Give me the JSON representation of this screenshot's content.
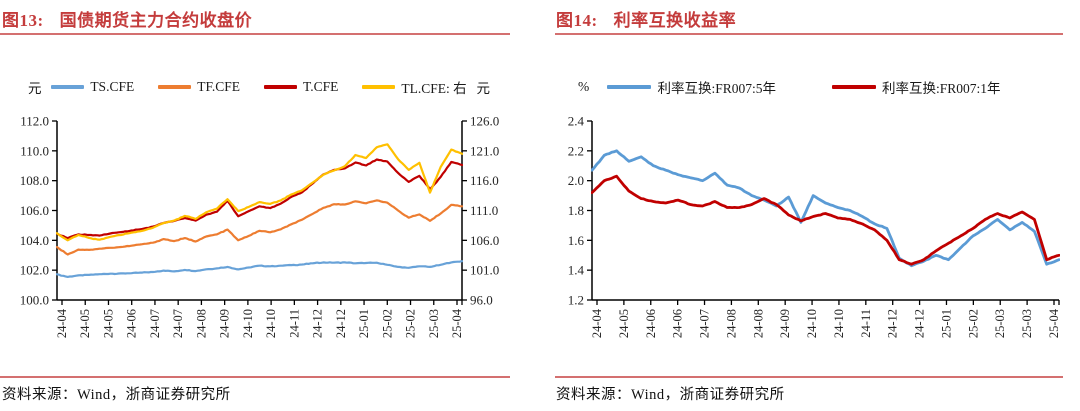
{
  "colors": {
    "title_red": "#C43C3C",
    "rule_red": "#D47070",
    "axis_black": "#000000",
    "tick_text": "#262626",
    "source_text": "#111111"
  },
  "panels": [
    {
      "fig_label": "图13:",
      "title": "国债期货主力合约收盘价",
      "unit_left": "元",
      "unit_right": "元",
      "source": "资料来源：Wind，浙商证券研究所"
    },
    {
      "fig_label": "图14:",
      "title": "利率互换收益率",
      "unit_left": "%",
      "source": "资料来源：Wind，浙商证券研究所"
    }
  ],
  "chart_data": [
    {
      "type": "line",
      "title": "国债期货主力合约收盘价",
      "legend_position": "top",
      "x_labels": [
        "24-04",
        "24-05",
        "24-05",
        "24-06",
        "24-07",
        "24-07",
        "24-08",
        "24-09",
        "24-10",
        "24-10",
        "24-11",
        "24-12",
        "24-12",
        "25-01",
        "25-02",
        "25-02",
        "25-03",
        "25-04"
      ],
      "y_axis_left": {
        "label": "元",
        "min": 100.0,
        "max": 112.0,
        "step": 2.0,
        "decimals": 1
      },
      "y_axis_right": {
        "label": "元",
        "min": 96.0,
        "max": 126.0,
        "step": 5.0,
        "decimals": 1
      },
      "series": [
        {
          "name": "TS.CFE",
          "color": "#68A2D8",
          "axis": "left",
          "values": [
            101.72,
            101.55,
            101.65,
            101.68,
            101.73,
            101.76,
            101.78,
            101.8,
            101.84,
            101.88,
            101.97,
            101.92,
            102.02,
            101.94,
            102.06,
            102.12,
            102.22,
            102.05,
            102.18,
            102.3,
            102.26,
            102.3,
            102.34,
            102.38,
            102.46,
            102.52,
            102.5,
            102.52,
            102.46,
            102.48,
            102.5,
            102.36,
            102.22,
            102.16,
            102.26,
            102.22,
            102.36,
            102.52,
            102.6
          ]
        },
        {
          "name": "TF.CFE",
          "color": "#ED7D31",
          "axis": "left",
          "values": [
            103.55,
            103.05,
            103.38,
            103.36,
            103.44,
            103.5,
            103.55,
            103.64,
            103.74,
            103.84,
            104.08,
            103.95,
            104.15,
            103.92,
            104.26,
            104.4,
            104.72,
            104.0,
            104.3,
            104.64,
            104.54,
            104.74,
            105.08,
            105.38,
            105.78,
            106.18,
            106.42,
            106.4,
            106.62,
            106.48,
            106.68,
            106.52,
            106.0,
            105.52,
            105.74,
            105.3,
            105.8,
            106.38,
            106.28
          ]
        },
        {
          "name": "T.CFE",
          "color": "#C00000",
          "axis": "left",
          "values": [
            104.45,
            104.15,
            104.4,
            104.36,
            104.32,
            104.46,
            104.55,
            104.66,
            104.76,
            104.92,
            105.16,
            105.3,
            105.5,
            105.32,
            105.72,
            105.92,
            106.65,
            105.62,
            105.96,
            106.28,
            106.16,
            106.46,
            106.92,
            107.22,
            107.82,
            108.42,
            108.72,
            108.82,
            109.22,
            109.02,
            109.42,
            109.28,
            108.52,
            107.92,
            108.32,
            107.42,
            108.25,
            109.25,
            109.05
          ]
        },
        {
          "name": "TL.CFE: 右",
          "color": "#FFC000",
          "axis": "right",
          "values": [
            107.2,
            106.0,
            106.9,
            106.4,
            106.1,
            106.6,
            106.9,
            107.3,
            107.6,
            108.1,
            108.9,
            109.3,
            110.1,
            109.6,
            110.7,
            111.3,
            112.9,
            110.9,
            111.6,
            112.4,
            112.1,
            112.7,
            113.7,
            114.4,
            115.7,
            117.0,
            117.7,
            118.4,
            120.3,
            119.8,
            121.6,
            122.1,
            119.6,
            117.8,
            119.0,
            114.0,
            118.3,
            121.2,
            120.5
          ]
        }
      ]
    },
    {
      "type": "line",
      "title": "利率互换收益率",
      "legend_position": "top",
      "x_labels": [
        "24-04",
        "24-05",
        "24-06",
        "24-06",
        "24-07",
        "24-08",
        "24-08",
        "24-09",
        "24-10",
        "24-10",
        "24-11",
        "24-12",
        "24-12",
        "25-01",
        "25-02",
        "25-03",
        "25-03",
        "25-04"
      ],
      "y_axis_left": {
        "label": "%",
        "min": 1.2,
        "max": 2.4,
        "step": 0.2,
        "decimals": 1
      },
      "series": [
        {
          "name": "利率互换:FR007:5年",
          "color": "#5B9BD5",
          "axis": "left",
          "values": [
            2.07,
            2.17,
            2.2,
            2.13,
            2.16,
            2.1,
            2.07,
            2.04,
            2.02,
            2.0,
            2.05,
            1.97,
            1.95,
            1.9,
            1.87,
            1.83,
            1.89,
            1.72,
            1.9,
            1.85,
            1.82,
            1.8,
            1.76,
            1.71,
            1.68,
            1.48,
            1.43,
            1.46,
            1.5,
            1.47,
            1.55,
            1.63,
            1.68,
            1.74,
            1.67,
            1.72,
            1.66,
            1.44,
            1.47
          ]
        },
        {
          "name": "利率互换:FR007:1年",
          "color": "#C00000",
          "axis": "left",
          "values": [
            1.92,
            2.0,
            2.03,
            1.93,
            1.88,
            1.86,
            1.85,
            1.87,
            1.84,
            1.83,
            1.86,
            1.82,
            1.82,
            1.84,
            1.88,
            1.84,
            1.77,
            1.73,
            1.76,
            1.78,
            1.75,
            1.74,
            1.71,
            1.67,
            1.6,
            1.47,
            1.44,
            1.47,
            1.53,
            1.58,
            1.63,
            1.68,
            1.74,
            1.78,
            1.75,
            1.79,
            1.74,
            1.47,
            1.5
          ]
        }
      ]
    }
  ]
}
